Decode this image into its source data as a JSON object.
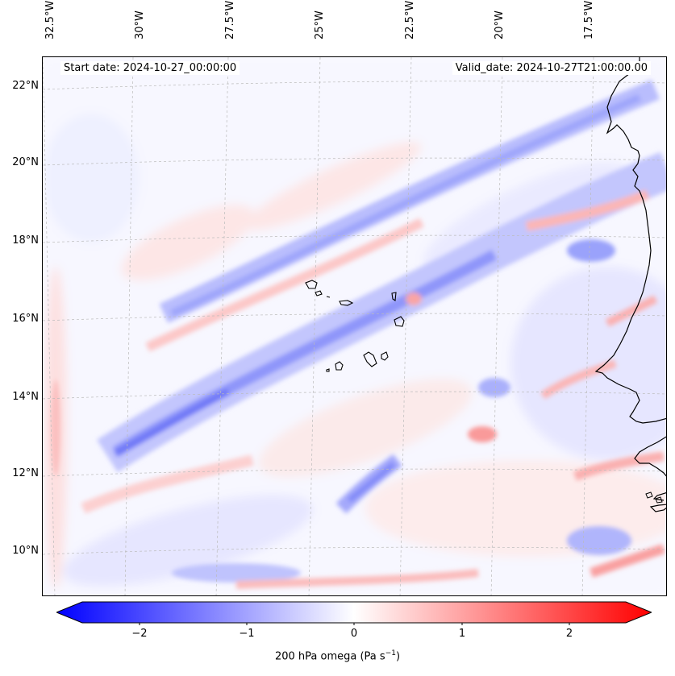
{
  "map": {
    "start_date": "Start date: 2024-10-27_00:00:00",
    "valid_date": "Valid_date: 2024-10-27T21:00:00.00",
    "lon_labels": [
      "32.5°W",
      "30°W",
      "27.5°W",
      "25°W",
      "22.5°W",
      "20°W",
      "17.5°W"
    ],
    "lat_labels": [
      "22°N",
      "20°N",
      "18°N",
      "16°N",
      "14°N",
      "12°N",
      "10°N"
    ],
    "variable": "200 hPa omega",
    "units": "Pa s",
    "units_exp": "−1"
  },
  "colorbar": {
    "ticks": [
      "−2",
      "−1",
      "0",
      "1",
      "2"
    ],
    "min_color": "#0000ff",
    "mid_color": "#ffffff",
    "max_color": "#ff0000"
  },
  "colors": {
    "coastline": "#000000",
    "gridline": "#bbbbbb"
  }
}
